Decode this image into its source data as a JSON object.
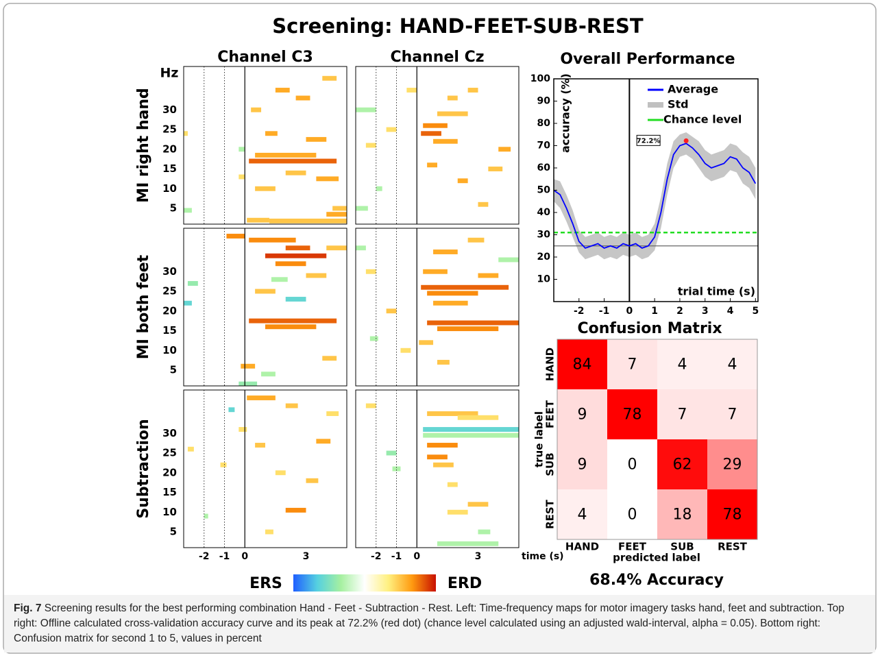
{
  "title": "Screening: HAND-FEET-SUB-REST",
  "chart_data": [
    {
      "type": "timefreq",
      "columns": [
        "Channel C3",
        "Channel Cz"
      ],
      "rows": [
        "MI right hand",
        "MI both feet",
        "Subtraction"
      ],
      "y_unit": "Hz",
      "xlabel": "time (s)",
      "xlim": [
        -3,
        5
      ],
      "xticks": [
        -2,
        -1,
        0,
        3
      ],
      "ylim": [
        1,
        41
      ],
      "yticks": [
        5,
        10,
        15,
        20,
        25,
        30
      ],
      "markers": [
        -2,
        -1
      ],
      "cue": 0,
      "colorbar": {
        "low": "ERS",
        "high": "ERD",
        "colors": [
          "#1f5fff",
          "#55d0e0",
          "#a6f0a0",
          "#ffffff",
          "#fff080",
          "#ff9a10",
          "#c81000"
        ]
      },
      "panels": [
        {
          "blobs": [
            [
              0.2,
              4.5,
              17,
              0.8
            ],
            [
              0.5,
              3.5,
              18.5,
              0.6
            ],
            [
              -3,
              -2.8,
              24,
              0.4
            ],
            [
              -3,
              -2.6,
              4.5,
              -0.3
            ],
            [
              -0.3,
              0,
              13,
              0.4
            ],
            [
              0.1,
              1.2,
              2,
              0.5
            ],
            [
              1.2,
              5,
              1.8,
              0.5
            ],
            [
              4,
              5,
              3.5,
              0.6
            ],
            [
              4.3,
              5,
              5,
              0.5
            ],
            [
              1.5,
              2.2,
              35,
              0.6
            ],
            [
              2.5,
              3.2,
              33,
              0.6
            ],
            [
              3,
              4,
              22.5,
              0.6
            ],
            [
              0.5,
              1.5,
              10,
              0.5
            ],
            [
              3.5,
              4.6,
              12.5,
              0.6
            ],
            [
              -0.3,
              0,
              20,
              -0.3
            ],
            [
              1,
              1.6,
              24,
              0.6
            ],
            [
              2,
              3,
              14,
              0.5
            ],
            [
              0.3,
              0.8,
              30,
              0.5
            ],
            [
              3.8,
              4.5,
              38,
              0.5
            ]
          ]
        },
        {
          "blobs": [
            [
              0.2,
              1.2,
              24,
              0.8
            ],
            [
              0.3,
              1.5,
              26,
              0.7
            ],
            [
              0.8,
              2,
              22,
              0.6
            ],
            [
              -3,
              -2,
              30,
              -0.3
            ],
            [
              -2.5,
              -2,
              21,
              0.4
            ],
            [
              -1.5,
              -1,
              25,
              0.4
            ],
            [
              0.5,
              1,
              16,
              0.6
            ],
            [
              2,
              2.5,
              12,
              0.6
            ],
            [
              3,
              3.5,
              6,
              0.5
            ],
            [
              1.5,
              2,
              33,
              0.5
            ],
            [
              2.5,
              3,
              35,
              0.5
            ],
            [
              4,
              4.6,
              20,
              0.6
            ],
            [
              -3,
              -2.4,
              5,
              -0.3
            ],
            [
              -2,
              -1.7,
              10,
              -0.3
            ],
            [
              1,
              2.5,
              29,
              0.5
            ],
            [
              3.5,
              4.2,
              15,
              0.5
            ],
            [
              -0.5,
              0,
              35,
              0.4
            ]
          ]
        },
        {
          "blobs": [
            [
              0.2,
              2.5,
              38,
              0.7
            ],
            [
              1,
              4,
              34,
              0.9
            ],
            [
              2,
              3.2,
              36,
              0.8
            ],
            [
              1.5,
              3,
              32,
              0.7
            ],
            [
              0.2,
              4.5,
              17.5,
              0.8
            ],
            [
              1,
              3.5,
              16,
              0.7
            ],
            [
              -0.9,
              0,
              39,
              0.7
            ],
            [
              -3,
              -2.6,
              22,
              -0.6
            ],
            [
              -2.8,
              -2.3,
              27,
              -0.4
            ],
            [
              -0.3,
              0.6,
              1.5,
              -0.4
            ],
            [
              0.5,
              1.5,
              25,
              0.5
            ],
            [
              2,
              3,
              23,
              -0.6
            ],
            [
              3,
              4,
              29,
              0.5
            ],
            [
              -0.2,
              0.5,
              6,
              0.6
            ],
            [
              0.8,
              1.5,
              4,
              -0.3
            ],
            [
              3.8,
              4.5,
              8,
              0.5
            ],
            [
              1.3,
              2.1,
              28,
              -0.3
            ],
            [
              4,
              5,
              36,
              0.5
            ]
          ]
        },
        {
          "blobs": [
            [
              0.2,
              4.5,
              26,
              0.8
            ],
            [
              0.5,
              3,
              24.5,
              0.7
            ],
            [
              0.8,
              2.5,
              22,
              0.6
            ],
            [
              0.5,
              5,
              17,
              0.8
            ],
            [
              1,
              4,
              15.5,
              0.7
            ],
            [
              0.8,
              2,
              35,
              0.6
            ],
            [
              2.5,
              3.3,
              38,
              0.5
            ],
            [
              0.3,
              1.5,
              30,
              0.6
            ],
            [
              3,
              4,
              29,
              0.6
            ],
            [
              4,
              5,
              33,
              -0.3
            ],
            [
              -2.5,
              -2,
              30,
              0.4
            ],
            [
              -1.5,
              -1,
              20,
              0.5
            ],
            [
              -3,
              -2.5,
              36,
              -0.3
            ],
            [
              0.1,
              0.8,
              12,
              0.5
            ],
            [
              1,
              1.6,
              7,
              0.5
            ],
            [
              -0.8,
              -0.3,
              10,
              0.4
            ],
            [
              -2.3,
              -1.9,
              13,
              -0.3
            ]
          ]
        },
        {
          "blobs": [
            [
              0.1,
              1.5,
              39,
              0.6
            ],
            [
              -0.8,
              -0.5,
              36,
              -0.6
            ],
            [
              -0.3,
              0.1,
              31,
              0.4
            ],
            [
              2,
              3,
              10.5,
              0.7
            ],
            [
              0.5,
              1,
              27,
              0.5
            ],
            [
              3.5,
              4.2,
              28,
              0.6
            ],
            [
              -2,
              -1.8,
              9,
              -0.3
            ],
            [
              1.5,
              2,
              20,
              0.4
            ],
            [
              3,
              3.6,
              18,
              0.5
            ],
            [
              4,
              4.6,
              35,
              0.4
            ],
            [
              -2.8,
              -2.5,
              26,
              0.4
            ],
            [
              -1.2,
              -0.9,
              22,
              0.4
            ],
            [
              2,
              2.6,
              37,
              0.5
            ],
            [
              1,
              1.4,
              5,
              0.4
            ]
          ]
        },
        {
          "blobs": [
            [
              0.3,
              5,
              31,
              -0.6
            ],
            [
              0.3,
              5,
              29.5,
              -0.3
            ],
            [
              0.5,
              2,
              27,
              0.7
            ],
            [
              0.5,
              1.5,
              24,
              0.7
            ],
            [
              0.8,
              1.8,
              22,
              0.5
            ],
            [
              0.5,
              3,
              35,
              0.5
            ],
            [
              2,
              4,
              34,
              0.4
            ],
            [
              -1.5,
              -1,
              25,
              -0.4
            ],
            [
              -1.2,
              -0.8,
              21,
              -0.3
            ],
            [
              1.5,
              2,
              17,
              0.4
            ],
            [
              2.5,
              3.5,
              12,
              0.5
            ],
            [
              1,
              4,
              2,
              -0.3
            ],
            [
              3,
              3.6,
              5,
              -0.3
            ],
            [
              -2.5,
              -2,
              37,
              0.4
            ],
            [
              1.5,
              2.5,
              10,
              0.4
            ]
          ]
        }
      ]
    },
    {
      "type": "line",
      "title": "Overall Performance",
      "ylabel": "accuracy (%)",
      "xlabel": "trial time (s)",
      "xlim": [
        -3,
        5.1
      ],
      "ylim": [
        0,
        100
      ],
      "xticks": [
        -2,
        -1,
        0,
        1,
        2,
        3,
        4,
        5
      ],
      "yticks": [
        10,
        20,
        30,
        40,
        50,
        60,
        70,
        80,
        90,
        100
      ],
      "x": [
        -3,
        -2.75,
        -2.5,
        -2.25,
        -2,
        -1.75,
        -1.5,
        -1.25,
        -1,
        -0.75,
        -0.5,
        -0.25,
        0,
        0.25,
        0.5,
        0.75,
        1,
        1.25,
        1.5,
        1.75,
        2,
        2.25,
        2.5,
        2.75,
        3,
        3.25,
        3.5,
        3.75,
        4,
        4.25,
        4.5,
        4.75,
        5
      ],
      "series": [
        {
          "name": "Average",
          "color": "#0000ff",
          "values": [
            50,
            48,
            42,
            35,
            27,
            24,
            25,
            26,
            24,
            25,
            24,
            26,
            25,
            26,
            24,
            25,
            29,
            40,
            55,
            66,
            70,
            71,
            69,
            66,
            62,
            60,
            61,
            62,
            65,
            64,
            60,
            58,
            53
          ]
        },
        {
          "name": "Std",
          "color": "#c0c0c0",
          "values": [
            5,
            6,
            6,
            6,
            5,
            5,
            5,
            5,
            5,
            5,
            5,
            5,
            5,
            5,
            5,
            5,
            6,
            7,
            7,
            6,
            5,
            5,
            5,
            6,
            6,
            6,
            6,
            6,
            6,
            6,
            7,
            7,
            7
          ]
        }
      ],
      "chance": {
        "name": "Chance level",
        "color": "#22dd22",
        "value": 31
      },
      "baseline": 25,
      "onset": 0,
      "peak": {
        "x": 2.25,
        "y": 72.2,
        "label": "72.2%",
        "color": "#ff2020"
      }
    },
    {
      "type": "heatmap",
      "title": "Confusion Matrix",
      "xlabel": "predicted label",
      "ylabel": "true label",
      "categories": [
        "HAND",
        "FEET",
        "SUB",
        "REST"
      ],
      "values": [
        [
          84,
          7,
          4,
          4
        ],
        [
          9,
          78,
          7,
          7
        ],
        [
          9,
          0,
          62,
          29
        ],
        [
          4,
          0,
          18,
          78
        ]
      ],
      "colors": [
        "#ffffff",
        "#ff0000"
      ],
      "clim": [
        0,
        65
      ],
      "footer": "68.4% Accuracy"
    }
  ],
  "caption": {
    "label": "Fig. 7",
    "text": "Screening results for the best performing combination Hand - Feet - Subtraction - Rest. Left: Time-frequency maps for motor imagery tasks hand, feet and subtraction. Top right: Offline calculated cross-validation accuracy curve and its peak at 72.2% (red dot) (chance level calculated using an adjusted wald-interval, alpha = 0.05). Bottom right: Confusion matrix for second 1 to 5, values in percent"
  }
}
